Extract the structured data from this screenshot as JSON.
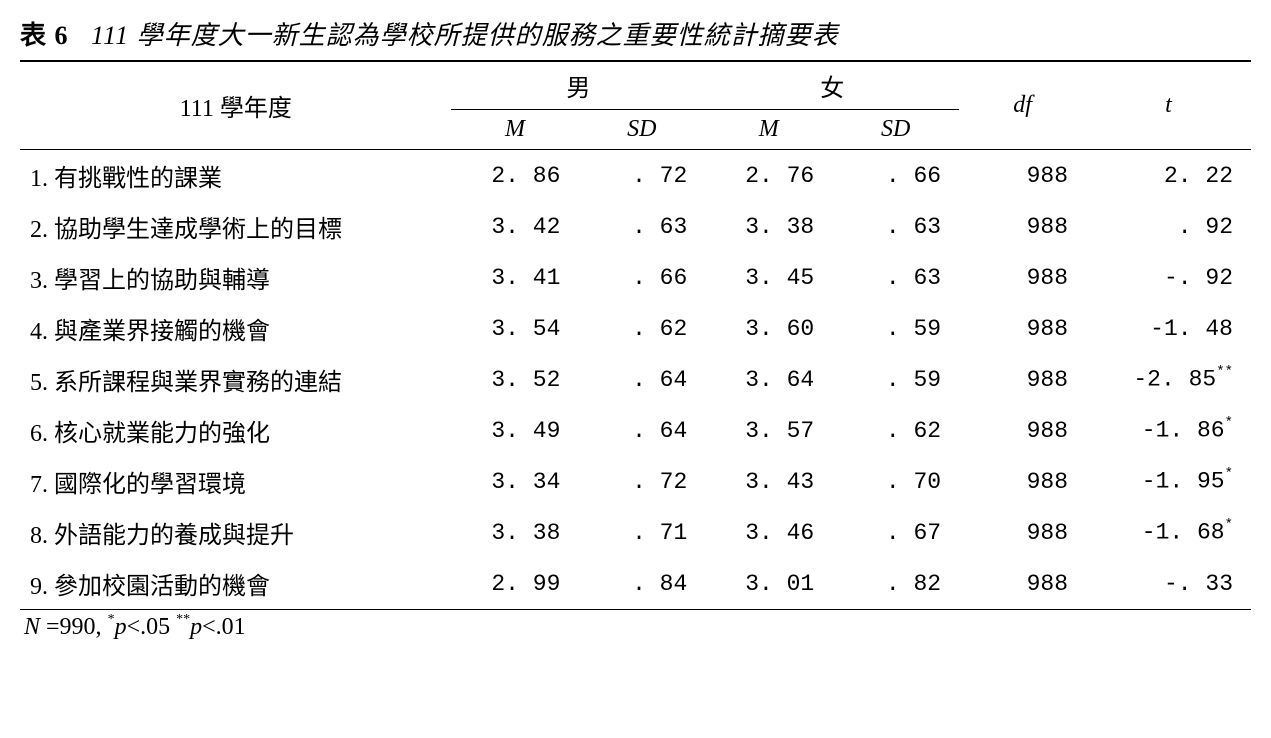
{
  "title": {
    "label": "表 6",
    "text": "111 學年度大一新生認為學校所提供的服務之重要性統計摘要表"
  },
  "header": {
    "year": "111 學年度",
    "male": "男",
    "female": "女",
    "m": "M",
    "sd": "SD",
    "df": "df",
    "t": "t"
  },
  "rows": [
    {
      "label": "1. 有挑戰性的課業",
      "m1": "2. 86",
      "sd1": ". 72",
      "m2": "2. 76",
      "sd2": ". 66",
      "df": "988",
      "t": "2. 22",
      "sig": ""
    },
    {
      "label": "2. 協助學生達成學術上的目標",
      "m1": "3. 42",
      "sd1": ". 63",
      "m2": "3. 38",
      "sd2": ". 63",
      "df": "988",
      "t": ". 92",
      "sig": ""
    },
    {
      "label": "3. 學習上的協助與輔導",
      "m1": "3. 41",
      "sd1": ". 66",
      "m2": "3. 45",
      "sd2": ". 63",
      "df": "988",
      "t": "-. 92",
      "sig": ""
    },
    {
      "label": "4. 與產業界接觸的機會",
      "m1": "3. 54",
      "sd1": ". 62",
      "m2": "3. 60",
      "sd2": ". 59",
      "df": "988",
      "t": "-1. 48",
      "sig": ""
    },
    {
      "label": "5. 系所課程與業界實務的連結",
      "m1": "3. 52",
      "sd1": ". 64",
      "m2": "3. 64",
      "sd2": ". 59",
      "df": "988",
      "t": "-2. 85",
      "sig": "**"
    },
    {
      "label": "6. 核心就業能力的強化",
      "m1": "3. 49",
      "sd1": ". 64",
      "m2": "3. 57",
      "sd2": ". 62",
      "df": "988",
      "t": "-1. 86",
      "sig": "*"
    },
    {
      "label": "7. 國際化的學習環境",
      "m1": "3. 34",
      "sd1": ". 72",
      "m2": "3. 43",
      "sd2": ". 70",
      "df": "988",
      "t": "-1. 95",
      "sig": "*"
    },
    {
      "label": "8. 外語能力的養成與提升",
      "m1": "3. 38",
      "sd1": ". 71",
      "m2": "3. 46",
      "sd2": ". 67",
      "df": "988",
      "t": "-1. 68",
      "sig": "*"
    },
    {
      "label": "9. 參加校園活動的機會",
      "m1": "2. 99",
      "sd1": ". 84",
      "m2": "3. 01",
      "sd2": ". 82",
      "df": "988",
      "t": "-. 33",
      "sig": ""
    }
  ],
  "footnote": {
    "n_label": "N",
    "n_value": "=990,",
    "sig1_mark": "*",
    "sig1_text": "p<.05",
    "sig2_mark": "**",
    "sig2_text": "p<.01"
  }
}
